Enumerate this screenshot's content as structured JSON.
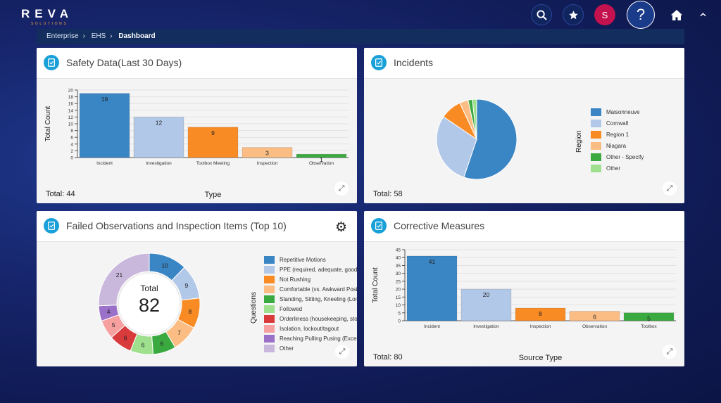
{
  "app": {
    "logo": "REVA",
    "logo_sub": "SOLUTIONS",
    "profile_initial": "S"
  },
  "breadcrumb": [
    "Enterprise",
    "EHS",
    "Dashboard"
  ],
  "icons": {
    "search": "search-icon",
    "favorites": "star-icon",
    "help": "?",
    "home": "home-icon",
    "collapse": "chevron-up-icon"
  },
  "colors": {
    "c1": "#3a85c4",
    "c2": "#b2c8e8",
    "c3": "#f88b24",
    "c4": "#fbbd84",
    "c5": "#3aaa40",
    "c6": "#9ee08e",
    "c7": "#d93a3c",
    "c8": "#f6a0a0",
    "c9": "#9a70c8",
    "c10": "#c9b8dc"
  },
  "panels": {
    "safety": {
      "title": "Safety Data(Last 30 Days)",
      "total": "Total: 44",
      "xlabel": "Type",
      "ylabel": "Total Count"
    },
    "incidents": {
      "title": "Incidents",
      "total": "Total: 58",
      "legend_title": "Region"
    },
    "failed": {
      "title": "Failed Observations and Inspection Items (Top 10)",
      "center_label": "Total",
      "center_value": "82",
      "legend_title": "Questions"
    },
    "corrective": {
      "title": "Corrective Measures",
      "total": "Total: 80",
      "xlabel": "Source Type",
      "ylabel": "Total Count"
    }
  },
  "chart_data": [
    {
      "type": "bar",
      "title": "Safety Data(Last 30 Days)",
      "xlabel": "Type",
      "ylabel": "Total Count",
      "categories": [
        "Incident",
        "Investigation",
        "Toolbox Meeting",
        "Inspection",
        "Observation"
      ],
      "values": [
        19,
        12,
        9,
        3,
        1
      ],
      "ylim": [
        0,
        20
      ],
      "yticks": [
        0,
        2,
        4,
        6,
        8,
        10,
        12,
        14,
        16,
        18,
        20
      ],
      "grid": true
    },
    {
      "type": "pie",
      "title": "Incidents",
      "legend_title": "Region",
      "labels": [
        "Maisonneuve",
        "Cornwall",
        "Region 1",
        "Niagara",
        "Other - Specify",
        "Other"
      ],
      "values": [
        32,
        17,
        5,
        2,
        1,
        1
      ],
      "legend": "right"
    },
    {
      "type": "pie",
      "title": "Failed Observations and Inspection Items (Top 10)",
      "legend_title": "Questions",
      "labels": [
        "Repetitive Motions",
        "PPE (required, adequate, good con",
        "Not Rushing",
        "Comfortable (vs. Awkward Position",
        "Standing, Sitting, Kneeling (Long P",
        "Followed",
        "Orderliness (housekeeping, storag",
        "Isolation, lockout/tagout",
        "Reaching Pulling Pusing (Excessive",
        "Other"
      ],
      "values": [
        10,
        9,
        8,
        7,
        6,
        6,
        6,
        5,
        4,
        21
      ],
      "legend": "right"
    },
    {
      "type": "bar",
      "title": "Corrective Measures",
      "xlabel": "Source Type",
      "ylabel": "Total Count",
      "categories": [
        "Incident",
        "Investigation",
        "Inspection",
        "Observation",
        "Toolbox"
      ],
      "values": [
        41,
        20,
        8,
        6,
        5
      ],
      "ylim": [
        0,
        45
      ],
      "yticks": [
        0,
        5,
        10,
        15,
        20,
        25,
        30,
        35,
        40,
        45
      ],
      "grid": true
    }
  ]
}
